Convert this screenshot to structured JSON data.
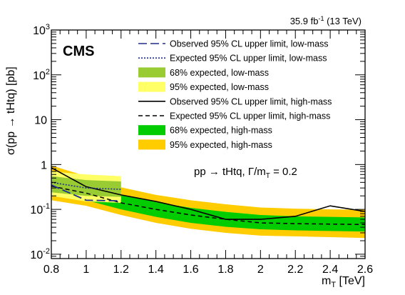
{
  "chart_data": {
    "type": "line",
    "header_right_prefix": "35.9 fb",
    "header_right_sup": "-1",
    "header_right_suffix": " (13 TeV)",
    "experiment_label": "CMS",
    "annotation_main": "pp → tHtq, Γ/m",
    "annotation_sub": "T",
    "annotation_end": " = 0.2",
    "xlabel_main": "m",
    "xlabel_sub": "T",
    "xlabel_unit": " [TeV]",
    "ylabel": "σ(pp → tHtq) [pb]",
    "xlim": [
      0.8,
      2.6
    ],
    "ylim": [
      0.008,
      1000
    ],
    "y_log": true,
    "x_ticks": [
      0.8,
      1.0,
      1.2,
      1.4,
      1.6,
      1.8,
      2.0,
      2.2,
      2.4,
      2.6
    ],
    "x_tick_labels": [
      "0.8",
      "1",
      "1.2",
      "1.4",
      "1.6",
      "1.8",
      "2",
      "2.2",
      "2.4",
      "2.6"
    ],
    "y_ticks": [
      0.01,
      0.1,
      1,
      10,
      100,
      1000
    ],
    "y_tick_labels": [
      {
        "base": "10",
        "exp": "-2"
      },
      {
        "base": "10",
        "exp": "-1"
      },
      {
        "base": "1",
        "exp": ""
      },
      {
        "base": "10",
        "exp": ""
      },
      {
        "base": "10",
        "exp": "2"
      },
      {
        "base": "10",
        "exp": "3"
      }
    ],
    "legend": [
      {
        "key": "obs_low",
        "label": "Observed 95% CL upper limit, low-mass",
        "style": "long-dash",
        "color": "#1f2d8c"
      },
      {
        "key": "exp_low",
        "label": "Expected 95% CL upper limit, low-mass",
        "style": "dotted",
        "color": "#1f2d8c"
      },
      {
        "key": "band68_low",
        "label": "68% expected, low-mass",
        "style": "fill",
        "color": "#99cc33"
      },
      {
        "key": "band95_low",
        "label": "95% expected, low-mass",
        "style": "fill",
        "color": "#ffff66"
      },
      {
        "key": "obs_high",
        "label": "Observed 95% CL upper limit, high-mass",
        "style": "solid",
        "color": "#000000"
      },
      {
        "key": "exp_high",
        "label": "Expected 95% CL upper limit, high-mass",
        "style": "dashed",
        "color": "#000000"
      },
      {
        "key": "band68_high",
        "label": "68% expected, high-mass",
        "style": "fill",
        "color": "#00cc00"
      },
      {
        "key": "band95_high",
        "label": "95% expected, high-mass",
        "style": "fill",
        "color": "#ffcc00"
      }
    ],
    "series": {
      "low_mass": {
        "x": [
          0.8,
          1.0,
          1.2
        ],
        "observed": [
          0.35,
          0.16,
          0.155
        ],
        "expected": [
          0.4,
          0.3,
          0.28
        ],
        "band68_lo": [
          0.24,
          0.2,
          0.19
        ],
        "band68_hi": [
          0.55,
          0.45,
          0.42
        ],
        "band95_lo": [
          0.2,
          0.15,
          0.14
        ],
        "band95_hi": [
          0.7,
          0.6,
          0.55
        ]
      },
      "high_mass": {
        "x": [
          0.8,
          1.0,
          1.2,
          1.4,
          1.6,
          1.8,
          2.0,
          2.2,
          2.4,
          2.6
        ],
        "observed": [
          0.85,
          0.32,
          0.21,
          0.15,
          0.1,
          0.06,
          0.06,
          0.07,
          0.12,
          0.09
        ],
        "expected": [
          0.33,
          0.23,
          0.14,
          0.1,
          0.075,
          0.06,
          0.05,
          0.048,
          0.047,
          0.046
        ],
        "band68_lo": [
          0.22,
          0.16,
          0.1,
          0.068,
          0.05,
          0.041,
          0.036,
          0.034,
          0.033,
          0.032
        ],
        "band68_hi": [
          0.55,
          0.36,
          0.21,
          0.145,
          0.108,
          0.088,
          0.075,
          0.07,
          0.068,
          0.066
        ],
        "band95_lo": [
          0.16,
          0.12,
          0.075,
          0.05,
          0.037,
          0.03,
          0.026,
          0.025,
          0.024,
          0.023
        ],
        "band95_hi": [
          0.95,
          0.55,
          0.31,
          0.21,
          0.16,
          0.13,
          0.11,
          0.104,
          0.1,
          0.098
        ]
      }
    }
  }
}
